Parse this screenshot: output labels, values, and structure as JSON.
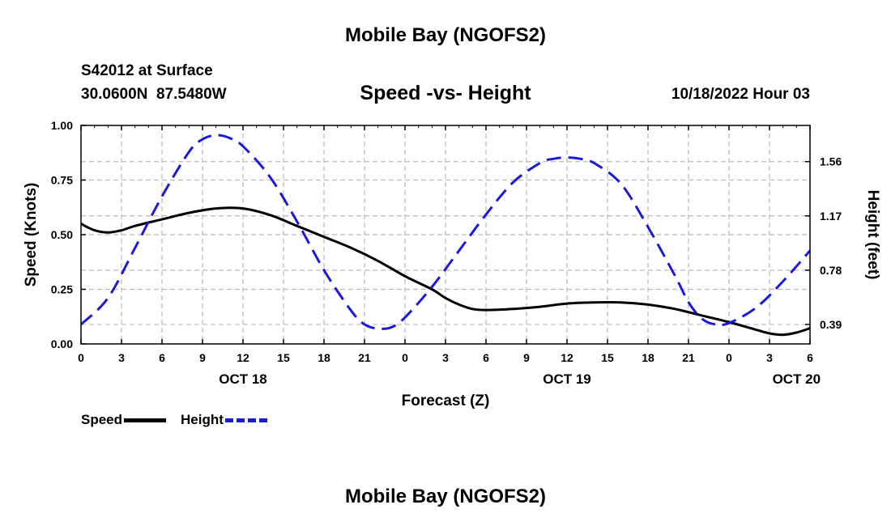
{
  "title": "Mobile Bay (NGOFS2)",
  "footer_title": "Mobile Bay (NGOFS2)",
  "station": "S42012 at Surface",
  "coordinates": "30.0600N  87.5480W",
  "datetime": "10/18/2022 Hour 03",
  "colors": {
    "speed": "#000000",
    "height": "#1a1adc",
    "grid": "#bbbbbb"
  },
  "chart_data": {
    "type": "line",
    "title": "Speed -vs- Height",
    "xlabel": "Forecast (Z)",
    "ylabel": "Speed (Knots)",
    "y2label": "Height (feet)",
    "x_unit": "hours since OCT 18 00Z",
    "xlim": [
      0,
      54
    ],
    "ylim": [
      0,
      1.0
    ],
    "y2lim": [
      0.25,
      1.82
    ],
    "x_ticks": [
      0,
      3,
      6,
      9,
      12,
      15,
      18,
      21,
      24,
      27,
      30,
      33,
      36,
      39,
      42,
      45,
      48,
      51,
      54
    ],
    "x_tick_labels": [
      "0",
      "3",
      "6",
      "9",
      "12",
      "15",
      "18",
      "21",
      "0",
      "3",
      "6",
      "9",
      "12",
      "15",
      "18",
      "21",
      "0",
      "3",
      "6"
    ],
    "y_ticks": [
      0,
      0.25,
      0.5,
      0.75,
      1.0
    ],
    "y_tick_labels": [
      "0.00",
      "0.25",
      "0.50",
      "0.75",
      "1.00"
    ],
    "y2_ticks": [
      0.39,
      0.78,
      1.17,
      1.56
    ],
    "y2_tick_labels": [
      "0.39",
      "0.78",
      "1.17",
      "1.56"
    ],
    "day_labels": [
      {
        "x": 12,
        "label": "OCT 18"
      },
      {
        "x": 36,
        "label": "OCT 19"
      },
      {
        "x": 53,
        "label": "OCT 20"
      }
    ],
    "grid": true,
    "legend_position": "bottom-left",
    "series": [
      {
        "name": "Speed",
        "axis": "left",
        "style": "solid",
        "x": [
          0,
          1,
          2,
          3,
          4,
          6,
          8,
          10,
          12,
          14,
          16,
          18,
          20,
          22,
          24,
          26,
          27,
          28,
          29,
          30,
          32,
          34,
          36,
          38,
          40,
          42,
          44,
          46,
          48,
          50,
          51,
          52,
          53,
          54
        ],
        "values": [
          0.55,
          0.52,
          0.51,
          0.52,
          0.54,
          0.57,
          0.6,
          0.62,
          0.62,
          0.59,
          0.54,
          0.49,
          0.44,
          0.38,
          0.31,
          0.25,
          0.21,
          0.18,
          0.16,
          0.155,
          0.16,
          0.17,
          0.185,
          0.19,
          0.19,
          0.18,
          0.16,
          0.13,
          0.1,
          0.065,
          0.048,
          0.042,
          0.052,
          0.072
        ]
      },
      {
        "name": "Height",
        "axis": "right",
        "style": "dashed",
        "x": [
          0,
          2,
          4,
          6,
          8,
          9,
          10,
          11,
          12,
          14,
          16,
          18,
          20,
          21,
          22,
          23,
          24,
          26,
          28,
          30,
          32,
          34,
          35,
          36,
          37,
          38,
          40,
          42,
          44,
          45,
          46,
          47,
          48,
          50,
          52,
          54
        ],
        "values": [
          0.39,
          0.58,
          0.94,
          1.31,
          1.63,
          1.72,
          1.75,
          1.73,
          1.67,
          1.45,
          1.13,
          0.78,
          0.49,
          0.39,
          0.36,
          0.37,
          0.44,
          0.66,
          0.92,
          1.18,
          1.41,
          1.55,
          1.58,
          1.59,
          1.58,
          1.55,
          1.4,
          1.09,
          0.74,
          0.55,
          0.43,
          0.39,
          0.4,
          0.51,
          0.7,
          0.92
        ]
      }
    ]
  }
}
